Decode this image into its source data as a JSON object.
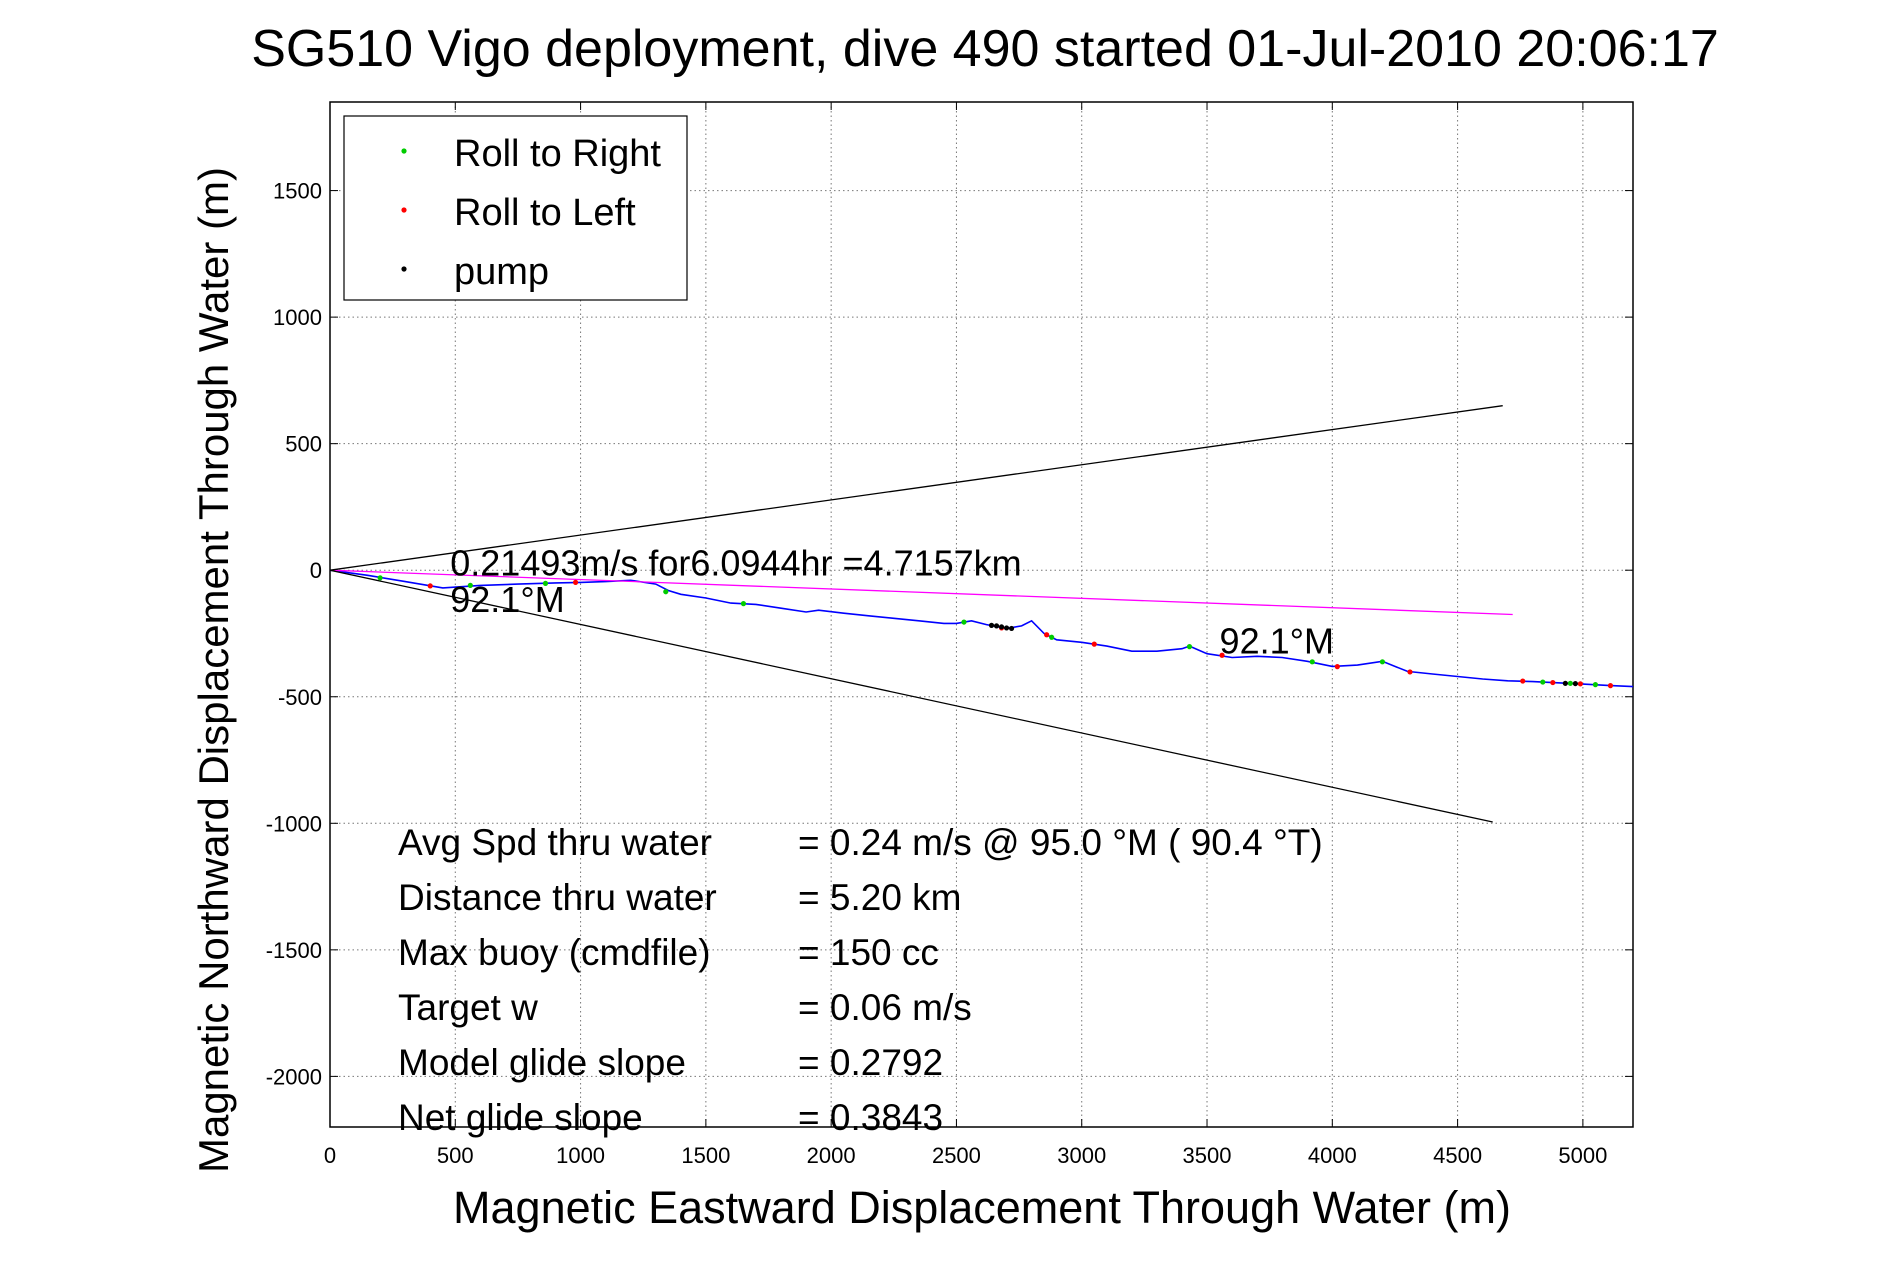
{
  "chart_data": {
    "type": "scatter",
    "title": "SG510 Vigo deployment, dive 490 started 01-Jul-2010 20:06:17",
    "xlabel": "Magnetic Eastward Displacement Through Water (m)",
    "ylabel": "Magnetic Northward Displacement Through Water (m)",
    "xlim": [
      0,
      5200
    ],
    "ylim": [
      -2200,
      1850
    ],
    "xticks": [
      "0",
      "500",
      "1000",
      "1500",
      "2000",
      "2500",
      "3000",
      "3500",
      "4000",
      "4500",
      "5000"
    ],
    "yticks": [
      "-2000",
      "-1500",
      "-1000",
      "-500",
      "0",
      "500",
      "1000",
      "1500"
    ],
    "grid": true,
    "legend": {
      "position": "top-left",
      "entries": [
        {
          "label": "Roll to Right",
          "color": "#00cc00"
        },
        {
          "label": "Roll to Left",
          "color": "#ff0000"
        },
        {
          "label": "pump",
          "color": "#000000"
        }
      ]
    },
    "series": [
      {
        "role": "track",
        "color": "#0000ff",
        "points": [
          [
            0,
            0
          ],
          [
            150,
            -20
          ],
          [
            300,
            -45
          ],
          [
            450,
            -70
          ],
          [
            600,
            -60
          ],
          [
            750,
            -55
          ],
          [
            900,
            -50
          ],
          [
            1000,
            -48
          ],
          [
            1100,
            -45
          ],
          [
            1200,
            -40
          ],
          [
            1300,
            -55
          ],
          [
            1350,
            -80
          ],
          [
            1400,
            -95
          ],
          [
            1500,
            -110
          ],
          [
            1600,
            -130
          ],
          [
            1700,
            -135
          ],
          [
            1800,
            -150
          ],
          [
            1900,
            -165
          ],
          [
            1950,
            -158
          ],
          [
            2050,
            -170
          ],
          [
            2150,
            -180
          ],
          [
            2250,
            -190
          ],
          [
            2350,
            -200
          ],
          [
            2450,
            -210
          ],
          [
            2500,
            -210
          ],
          [
            2560,
            -200
          ],
          [
            2620,
            -215
          ],
          [
            2700,
            -230
          ],
          [
            2760,
            -220
          ],
          [
            2800,
            -200
          ],
          [
            2850,
            -250
          ],
          [
            2900,
            -275
          ],
          [
            3000,
            -285
          ],
          [
            3100,
            -300
          ],
          [
            3200,
            -320
          ],
          [
            3300,
            -320
          ],
          [
            3400,
            -310
          ],
          [
            3430,
            -300
          ],
          [
            3500,
            -330
          ],
          [
            3600,
            -345
          ],
          [
            3700,
            -340
          ],
          [
            3800,
            -345
          ],
          [
            3900,
            -360
          ],
          [
            4000,
            -380
          ],
          [
            4100,
            -375
          ],
          [
            4200,
            -360
          ],
          [
            4300,
            -400
          ],
          [
            4400,
            -410
          ],
          [
            4500,
            -420
          ],
          [
            4600,
            -430
          ],
          [
            4700,
            -437
          ],
          [
            4800,
            -440
          ],
          [
            4900,
            -445
          ],
          [
            5000,
            -450
          ],
          [
            5100,
            -455
          ],
          [
            5200,
            -460
          ]
        ]
      },
      {
        "role": "mean-heading-line",
        "color": "#ff00ff",
        "points": [
          [
            0,
            0
          ],
          [
            4720,
            -175
          ]
        ]
      },
      {
        "role": "cone-upper",
        "color": "#000000",
        "points": [
          [
            0,
            0
          ],
          [
            4680,
            650
          ]
        ]
      },
      {
        "role": "cone-lower",
        "color": "#000000",
        "points": [
          [
            0,
            0
          ],
          [
            4640,
            -995
          ]
        ]
      },
      {
        "name": "Roll to Right",
        "color": "#00cc00",
        "points": [
          [
            200,
            -30
          ],
          [
            560,
            -60
          ],
          [
            860,
            -52
          ],
          [
            1340,
            -85
          ],
          [
            1650,
            -132
          ],
          [
            2530,
            -205
          ],
          [
            2880,
            -265
          ],
          [
            3430,
            -302
          ],
          [
            3920,
            -362
          ],
          [
            4200,
            -362
          ],
          [
            4840,
            -442
          ],
          [
            4950,
            -447
          ],
          [
            5050,
            -452
          ]
        ]
      },
      {
        "name": "Roll to Left",
        "color": "#ff0000",
        "points": [
          [
            400,
            -62
          ],
          [
            980,
            -48
          ],
          [
            2680,
            -228
          ],
          [
            2860,
            -255
          ],
          [
            3050,
            -292
          ],
          [
            3560,
            -336
          ],
          [
            4020,
            -381
          ],
          [
            4310,
            -402
          ],
          [
            4760,
            -438
          ],
          [
            4880,
            -444
          ],
          [
            4990,
            -449
          ],
          [
            5110,
            -456
          ]
        ]
      },
      {
        "name": "pump",
        "color": "#000000",
        "points": [
          [
            2640,
            -218
          ],
          [
            2660,
            -220
          ],
          [
            2680,
            -224
          ],
          [
            2700,
            -228
          ],
          [
            2720,
            -230
          ],
          [
            4930,
            -447
          ],
          [
            4970,
            -448
          ]
        ]
      }
    ],
    "annotations": [
      {
        "text": "0.21493m/s for6.0944hr =4.7157km",
        "x": 480,
        "y": -20
      },
      {
        "text": "92.1°M",
        "x": 480,
        "y": -165
      },
      {
        "text": "92.1°M",
        "x": 3550,
        "y": -330
      }
    ]
  },
  "stats": [
    {
      "label": "Avg Spd thru water",
      "value": "=  0.24 m/s @  95.0 °M ( 90.4 °T)"
    },
    {
      "label": "Distance thru water",
      "value": "=  5.20 km"
    },
    {
      "label": "Max buoy (cmdfile)",
      "value": "= 150 cc"
    },
    {
      "label": "Target w",
      "value": "= 0.06 m/s"
    },
    {
      "label": "Model glide slope",
      "value": "= 0.2792"
    },
    {
      "label": "Net glide slope",
      "value": "= 0.3843"
    }
  ]
}
